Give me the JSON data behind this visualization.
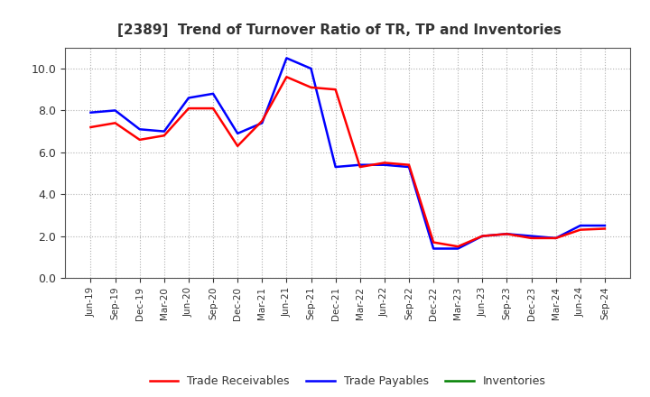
{
  "title": "[2389]  Trend of Turnover Ratio of TR, TP and Inventories",
  "x_labels": [
    "Jun-19",
    "Sep-19",
    "Dec-19",
    "Mar-20",
    "Jun-20",
    "Sep-20",
    "Dec-20",
    "Mar-21",
    "Jun-21",
    "Sep-21",
    "Dec-21",
    "Mar-22",
    "Jun-22",
    "Sep-22",
    "Dec-22",
    "Mar-23",
    "Jun-23",
    "Sep-23",
    "Dec-23",
    "Mar-24",
    "Jun-24",
    "Sep-24"
  ],
  "trade_receivables": [
    7.2,
    7.4,
    6.6,
    6.8,
    8.1,
    8.1,
    6.3,
    7.5,
    9.6,
    9.1,
    9.0,
    5.3,
    5.5,
    5.4,
    1.7,
    1.5,
    2.0,
    2.1,
    1.9,
    1.9,
    2.3,
    2.35
  ],
  "trade_payables": [
    7.9,
    8.0,
    7.1,
    7.0,
    8.6,
    8.8,
    6.9,
    7.4,
    10.5,
    10.0,
    5.3,
    5.4,
    5.4,
    5.3,
    1.4,
    1.4,
    2.0,
    2.1,
    2.0,
    1.9,
    2.5,
    2.5
  ],
  "inventories": [
    null,
    null,
    null,
    null,
    null,
    null,
    null,
    null,
    null,
    null,
    null,
    null,
    null,
    null,
    null,
    null,
    null,
    null,
    null,
    null,
    null,
    null
  ],
  "color_tr": "#ff0000",
  "color_tp": "#0000ff",
  "color_inv": "#008000",
  "ylim": [
    0.0,
    11.0
  ],
  "yticks": [
    0.0,
    2.0,
    4.0,
    6.0,
    8.0,
    10.0
  ],
  "background_color": "#ffffff",
  "grid_color": "#b0b0b0",
  "legend_labels": [
    "Trade Receivables",
    "Trade Payables",
    "Inventories"
  ]
}
